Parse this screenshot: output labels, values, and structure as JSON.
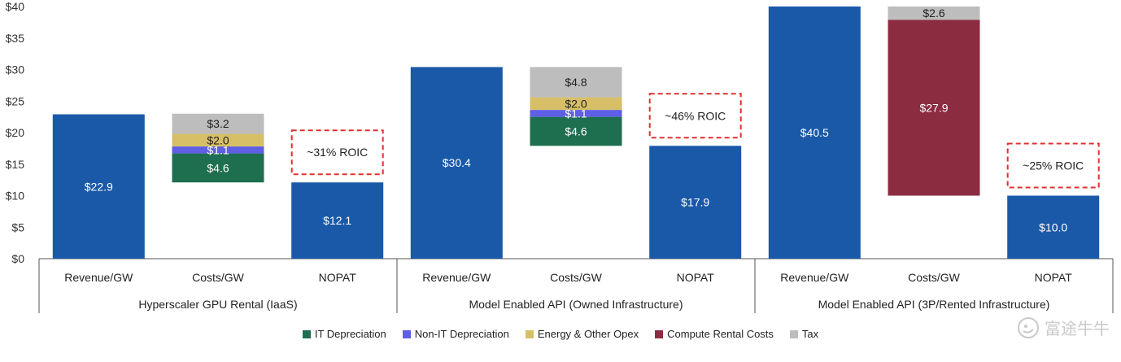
{
  "chart_data": {
    "type": "bar",
    "title": "",
    "xlabel": "",
    "ylabel": "",
    "ylim": [
      0,
      40
    ],
    "y_ticks": [
      "$0",
      "$5",
      "$10",
      "$15",
      "$20",
      "$25",
      "$30",
      "$35",
      "$40"
    ],
    "grid": false,
    "legend_position": "bottom",
    "groups": [
      {
        "name": "Hyperscaler GPU Rental (IaaS)",
        "revenue": {
          "category": "Revenue/GW",
          "value": 22.9,
          "label": "$22.9"
        },
        "costs": {
          "category": "Costs/GW",
          "components": [
            {
              "series": "IT Depreciation",
              "value": 4.6,
              "label": "$4.6"
            },
            {
              "series": "Non-IT Depreciation",
              "value": 1.1,
              "label": "$1.1"
            },
            {
              "series": "Energy & Other Opex",
              "value": 2.0,
              "label": "$2.0"
            },
            {
              "series": "Tax",
              "value": 3.2,
              "label": "$3.2"
            }
          ]
        },
        "nopat": {
          "category": "NOPAT",
          "value": 12.1,
          "label": "$12.1"
        },
        "roic": "~31% ROIC"
      },
      {
        "name": "Model Enabled API (Owned Infrastructure)",
        "revenue": {
          "category": "Revenue/GW",
          "value": 30.4,
          "label": "$30.4"
        },
        "costs": {
          "category": "Costs/GW",
          "components": [
            {
              "series": "IT Depreciation",
              "value": 4.6,
              "label": "$4.6"
            },
            {
              "series": "Non-IT Depreciation",
              "value": 1.1,
              "label": "$1.1"
            },
            {
              "series": "Energy & Other Opex",
              "value": 2.0,
              "label": "$2.0"
            },
            {
              "series": "Tax",
              "value": 4.8,
              "label": "$4.8"
            }
          ]
        },
        "nopat": {
          "category": "NOPAT",
          "value": 17.9,
          "label": "$17.9"
        },
        "roic": "~46% ROIC"
      },
      {
        "name": "Model Enabled API (3P/Rented Infrastructure)",
        "revenue": {
          "category": "Revenue/GW",
          "value": 40.5,
          "label": "$40.5"
        },
        "costs": {
          "category": "Costs/GW",
          "components": [
            {
              "series": "Compute Rental Costs",
              "value": 27.9,
              "label": "$27.9"
            },
            {
              "series": "Tax",
              "value": 2.6,
              "label": "$2.6"
            }
          ]
        },
        "nopat": {
          "category": "NOPAT",
          "value": 10.0,
          "label": "$10.0"
        },
        "roic": "~25% ROIC"
      }
    ],
    "legend": [
      {
        "name": "IT Depreciation",
        "color": "#1e6e50"
      },
      {
        "name": "Non-IT Depreciation",
        "color": "#5e5ee6"
      },
      {
        "name": "Energy & Other Opex",
        "color": "#d6bf66"
      },
      {
        "name": "Compute Rental Costs",
        "color": "#8b2c41"
      },
      {
        "name": "Tax",
        "color": "#bdbdbd"
      }
    ],
    "colors": {
      "revenue": "#1a59a8",
      "nopat": "#1a59a8",
      "roic_border": "#e03030"
    }
  },
  "watermark": {
    "text": "富途牛牛",
    "icon": "futu-logo-icon"
  }
}
